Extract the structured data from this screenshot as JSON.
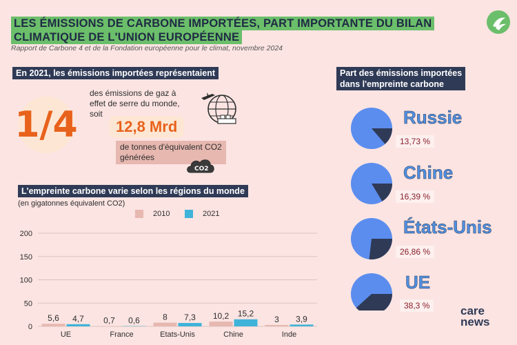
{
  "title": {
    "line1": "Les émissions de carbone importées, part importante du bilan",
    "line2": "climatique de l'Union européenne"
  },
  "subtitle": "Rapport de Carbone 4 et de la Fondation européenne pour le climat, novembre 2024",
  "left_section": {
    "heading": "En 2021, les émissions importées représentaient",
    "fraction": "1/4",
    "text1": "des émissions de gaz à effet de serre du monde, soit",
    "big_number": "12,8 Mrd",
    "text2": "de tonnes d'équivalent CO2 générées",
    "cloud_label": "CO2"
  },
  "chart_section": {
    "heading": "L'empreinte carbone varie selon les régions du monde",
    "unit": "(en gigatonnes équivalent CO2)"
  },
  "chart_data": [
    {
      "type": "bar",
      "title": "L'empreinte carbone varie selon les régions du monde",
      "ylabel": "(en gigatonnes équivalent CO2)",
      "categories": [
        "UE",
        "France",
        "Etats-Unis",
        "Chine",
        "Inde"
      ],
      "series": [
        {
          "name": "2010",
          "color": "#e7b8b0",
          "values": [
            5.6,
            0.7,
            8,
            10.2,
            3
          ],
          "labels": [
            "5,6",
            "0,7",
            "8",
            "10,2",
            "3"
          ]
        },
        {
          "name": "2021",
          "color": "#3fb3d9",
          "values": [
            4.7,
            0.6,
            7.3,
            15.2,
            3.9
          ],
          "labels": [
            "4,7",
            "0,6",
            "7,3",
            "15,2",
            "3,9"
          ]
        }
      ],
      "ylim": [
        0,
        200
      ],
      "yticks": [
        0,
        50,
        100,
        150,
        200
      ],
      "grid": true,
      "legend": "top-center"
    },
    {
      "type": "pie",
      "title": "Part des émissions importées dans l'empreinte carbone",
      "items": [
        {
          "label": "Russie",
          "value": 13.73,
          "text": "13,73 %"
        },
        {
          "label": "Chine",
          "value": 16.39,
          "text": "16,39 %"
        },
        {
          "label": "États-Unis",
          "value": 26.86,
          "text": "26,86 %"
        },
        {
          "label": "UE",
          "value": 38.3,
          "text": "38,3 %"
        }
      ],
      "colors": {
        "share": "#2f3a56",
        "rest": "#5b8def"
      }
    }
  ],
  "pie_section": {
    "heading_line1": "Part des émissions importées",
    "heading_line2": "dans l'empreinte carbone"
  },
  "logo": {
    "line1": "care",
    "line2": "news"
  }
}
